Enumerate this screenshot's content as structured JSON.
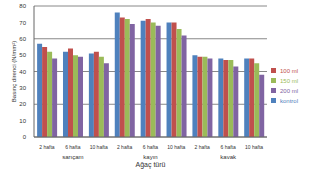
{
  "chart_data": {
    "type": "bar",
    "x_label": "Ağaç türü",
    "y_label": "Basınç direnci (N/mm²)",
    "categories": [
      "2 hafta",
      "6 hafta",
      "10 hafta",
      "2 hafta",
      "6 hafta",
      "10 hafta",
      "2 hafta",
      "6 hafta",
      "10 hafta"
    ],
    "groups": [
      "sarıçam",
      "kayın",
      "kavak"
    ],
    "series": [
      {
        "name": "kontrol",
        "color": "#4f81bd",
        "values": [
          57,
          52,
          51,
          76,
          71,
          70,
          50,
          48,
          48
        ]
      },
      {
        "name": "100 ml",
        "color": "#c0504d",
        "values": [
          55,
          54,
          52,
          73,
          72,
          70,
          49,
          47,
          48
        ]
      },
      {
        "name": "150 ml",
        "color": "#9bbb59",
        "values": [
          52,
          50,
          49,
          72,
          70,
          66,
          49,
          47,
          45
        ]
      },
      {
        "name": "200 ml",
        "color": "#8064a2",
        "values": [
          48,
          49,
          45,
          69,
          68,
          62,
          48,
          43,
          38
        ]
      }
    ],
    "ylim": [
      0,
      80
    ],
    "yticks": [
      0,
      10,
      20,
      30,
      40,
      50,
      60,
      70,
      80
    ],
    "grid": true,
    "legend": "right"
  }
}
